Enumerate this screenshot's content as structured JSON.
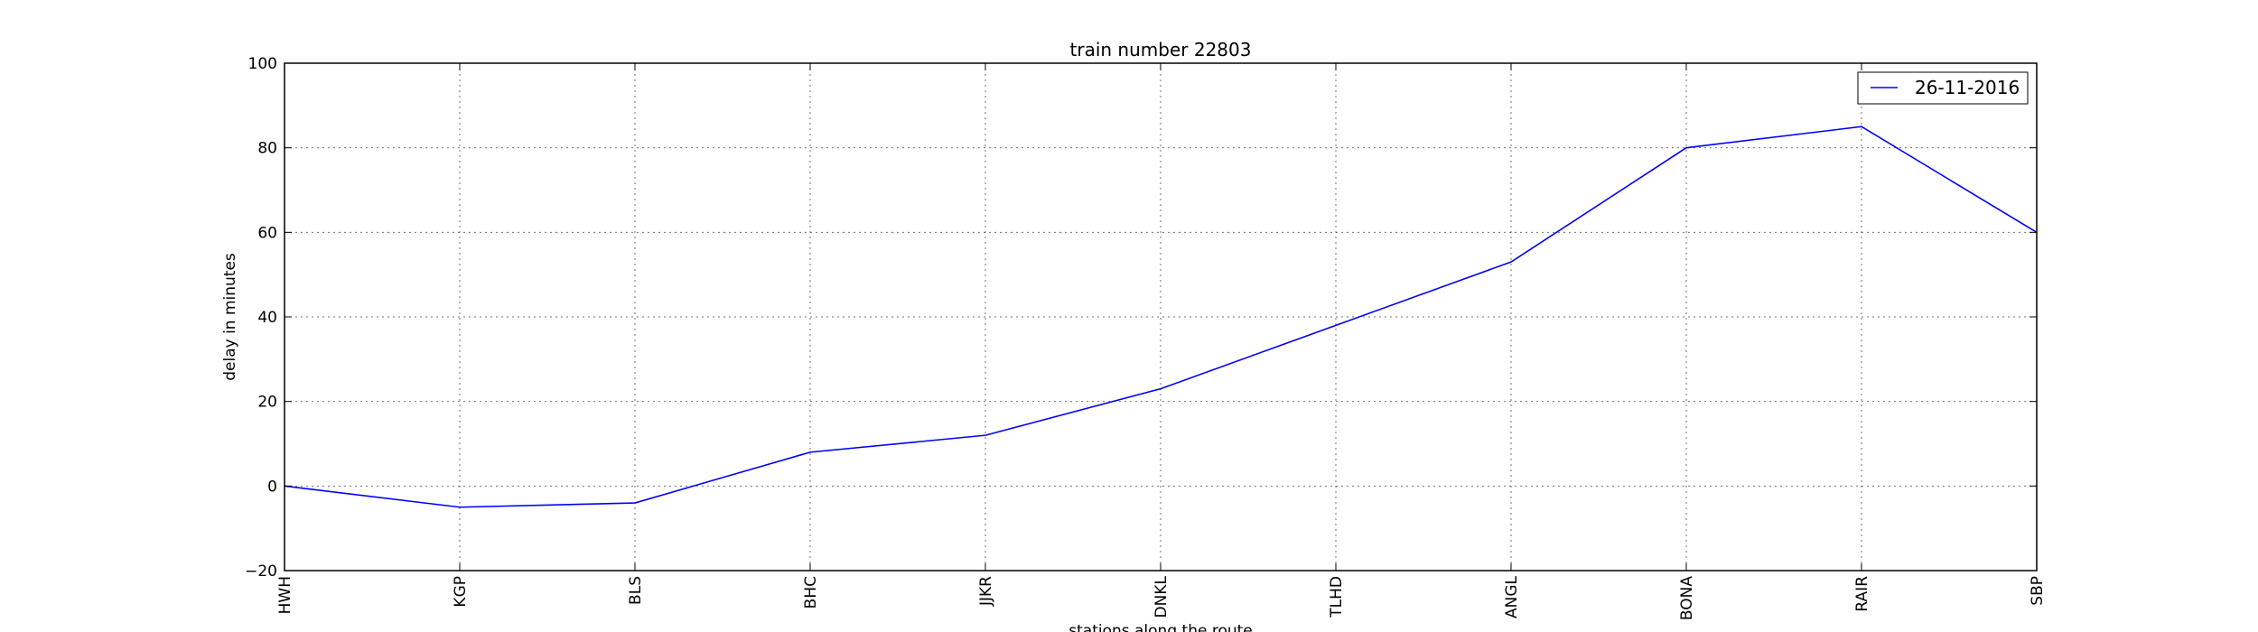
{
  "chart_data": {
    "type": "line",
    "title": "train number 22803",
    "xlabel": "stations along the route",
    "ylabel": "delay in minutes",
    "categories": [
      "HWH",
      "KGP",
      "BLS",
      "BHC",
      "JJKR",
      "DNKL",
      "TLHD",
      "ANGL",
      "BONA",
      "RAIR",
      "SBP"
    ],
    "series": [
      {
        "name": "26-11-2016",
        "values": [
          0,
          -5,
          -4,
          8,
          12,
          23,
          38,
          53,
          80,
          85,
          60
        ],
        "color": "#0000ff"
      }
    ],
    "ylim": [
      -20,
      100
    ],
    "yticks": [
      -20,
      0,
      20,
      40,
      60,
      80,
      100
    ],
    "grid": true,
    "legend_position": "top-right"
  }
}
